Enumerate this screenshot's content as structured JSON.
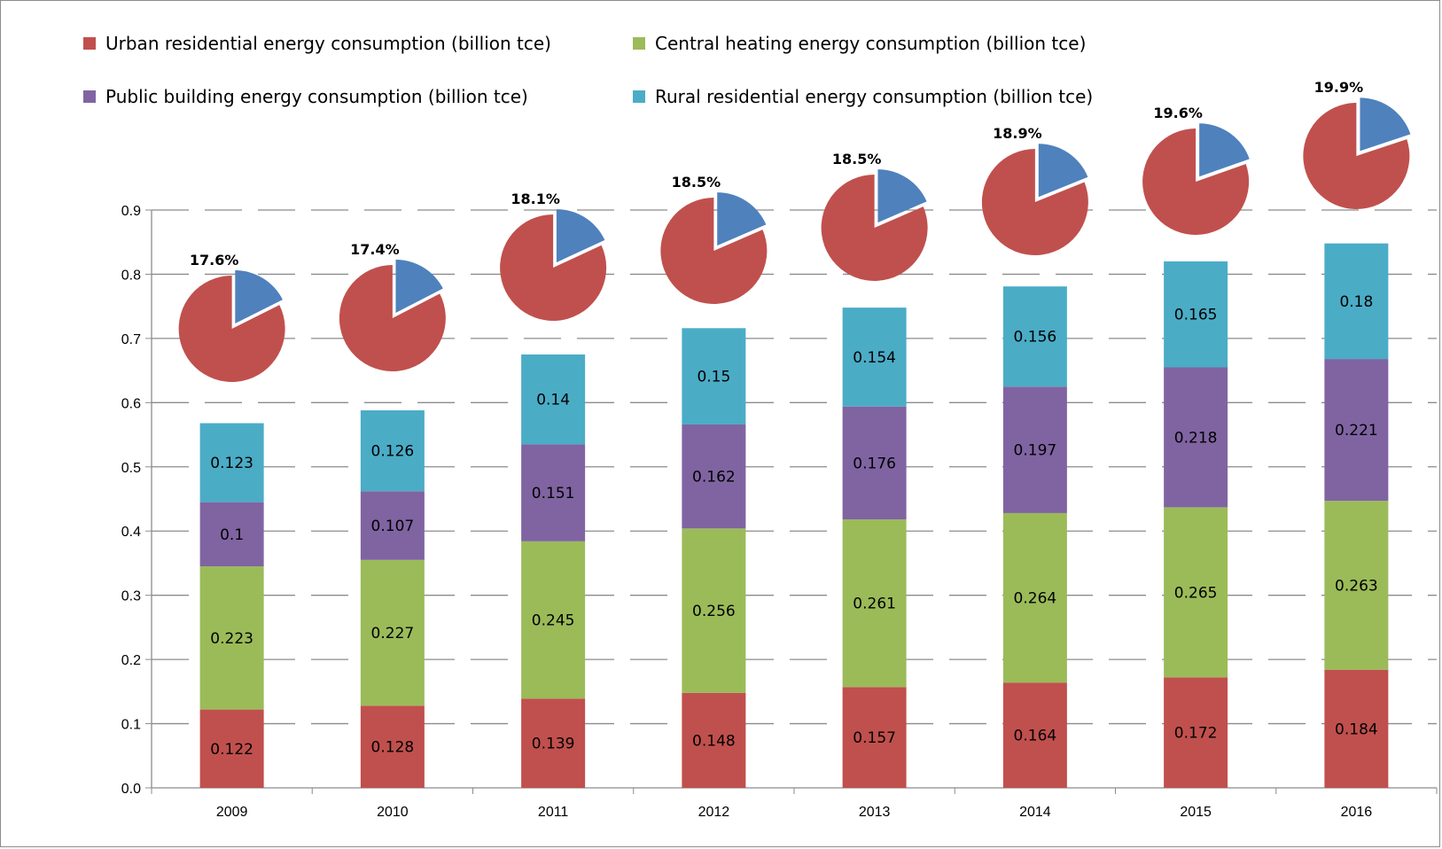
{
  "chart_data": {
    "type": "bar",
    "stacked": true,
    "categories": [
      "2009",
      "2010",
      "2011",
      "2012",
      "2013",
      "2014",
      "2015",
      "2016"
    ],
    "series": [
      {
        "name": "Urban residential energy consumption (billion tce)",
        "color": "#c0504d",
        "values": [
          0.122,
          0.128,
          0.139,
          0.148,
          0.157,
          0.164,
          0.172,
          0.184
        ]
      },
      {
        "name": "Central heating energy consumption (billion tce)",
        "color": "#9bbb59",
        "values": [
          0.223,
          0.227,
          0.245,
          0.256,
          0.261,
          0.264,
          0.265,
          0.263
        ]
      },
      {
        "name": "Public building energy consumption (billion tce)",
        "color": "#8064a2",
        "values": [
          0.1,
          0.107,
          0.151,
          0.162,
          0.176,
          0.197,
          0.218,
          0.221
        ]
      },
      {
        "name": "Rural residential energy consumption (billion tce)",
        "color": "#4bacc6",
        "values": [
          0.123,
          0.126,
          0.14,
          0.15,
          0.154,
          0.156,
          0.165,
          0.18
        ]
      }
    ],
    "ylim": [
      0,
      0.9
    ],
    "yticks": [
      "0.0",
      "0.1",
      "0.2",
      "0.3",
      "0.4",
      "0.5",
      "0.6",
      "0.7",
      "0.8",
      "0.9"
    ],
    "grid": true,
    "legend": "top",
    "title": "",
    "xlabel": "",
    "ylabel": "",
    "pie_insets": {
      "labels": [
        "17.6%",
        "17.4%",
        "18.1%",
        "18.5%",
        "18.5%",
        "18.9%",
        "19.6%",
        "19.9%"
      ],
      "share_percent": [
        17.6,
        17.4,
        18.1,
        18.5,
        18.5,
        18.9,
        19.6,
        19.9
      ],
      "wedge_color": "#4f81bd",
      "rest_color": "#c0504d"
    }
  }
}
